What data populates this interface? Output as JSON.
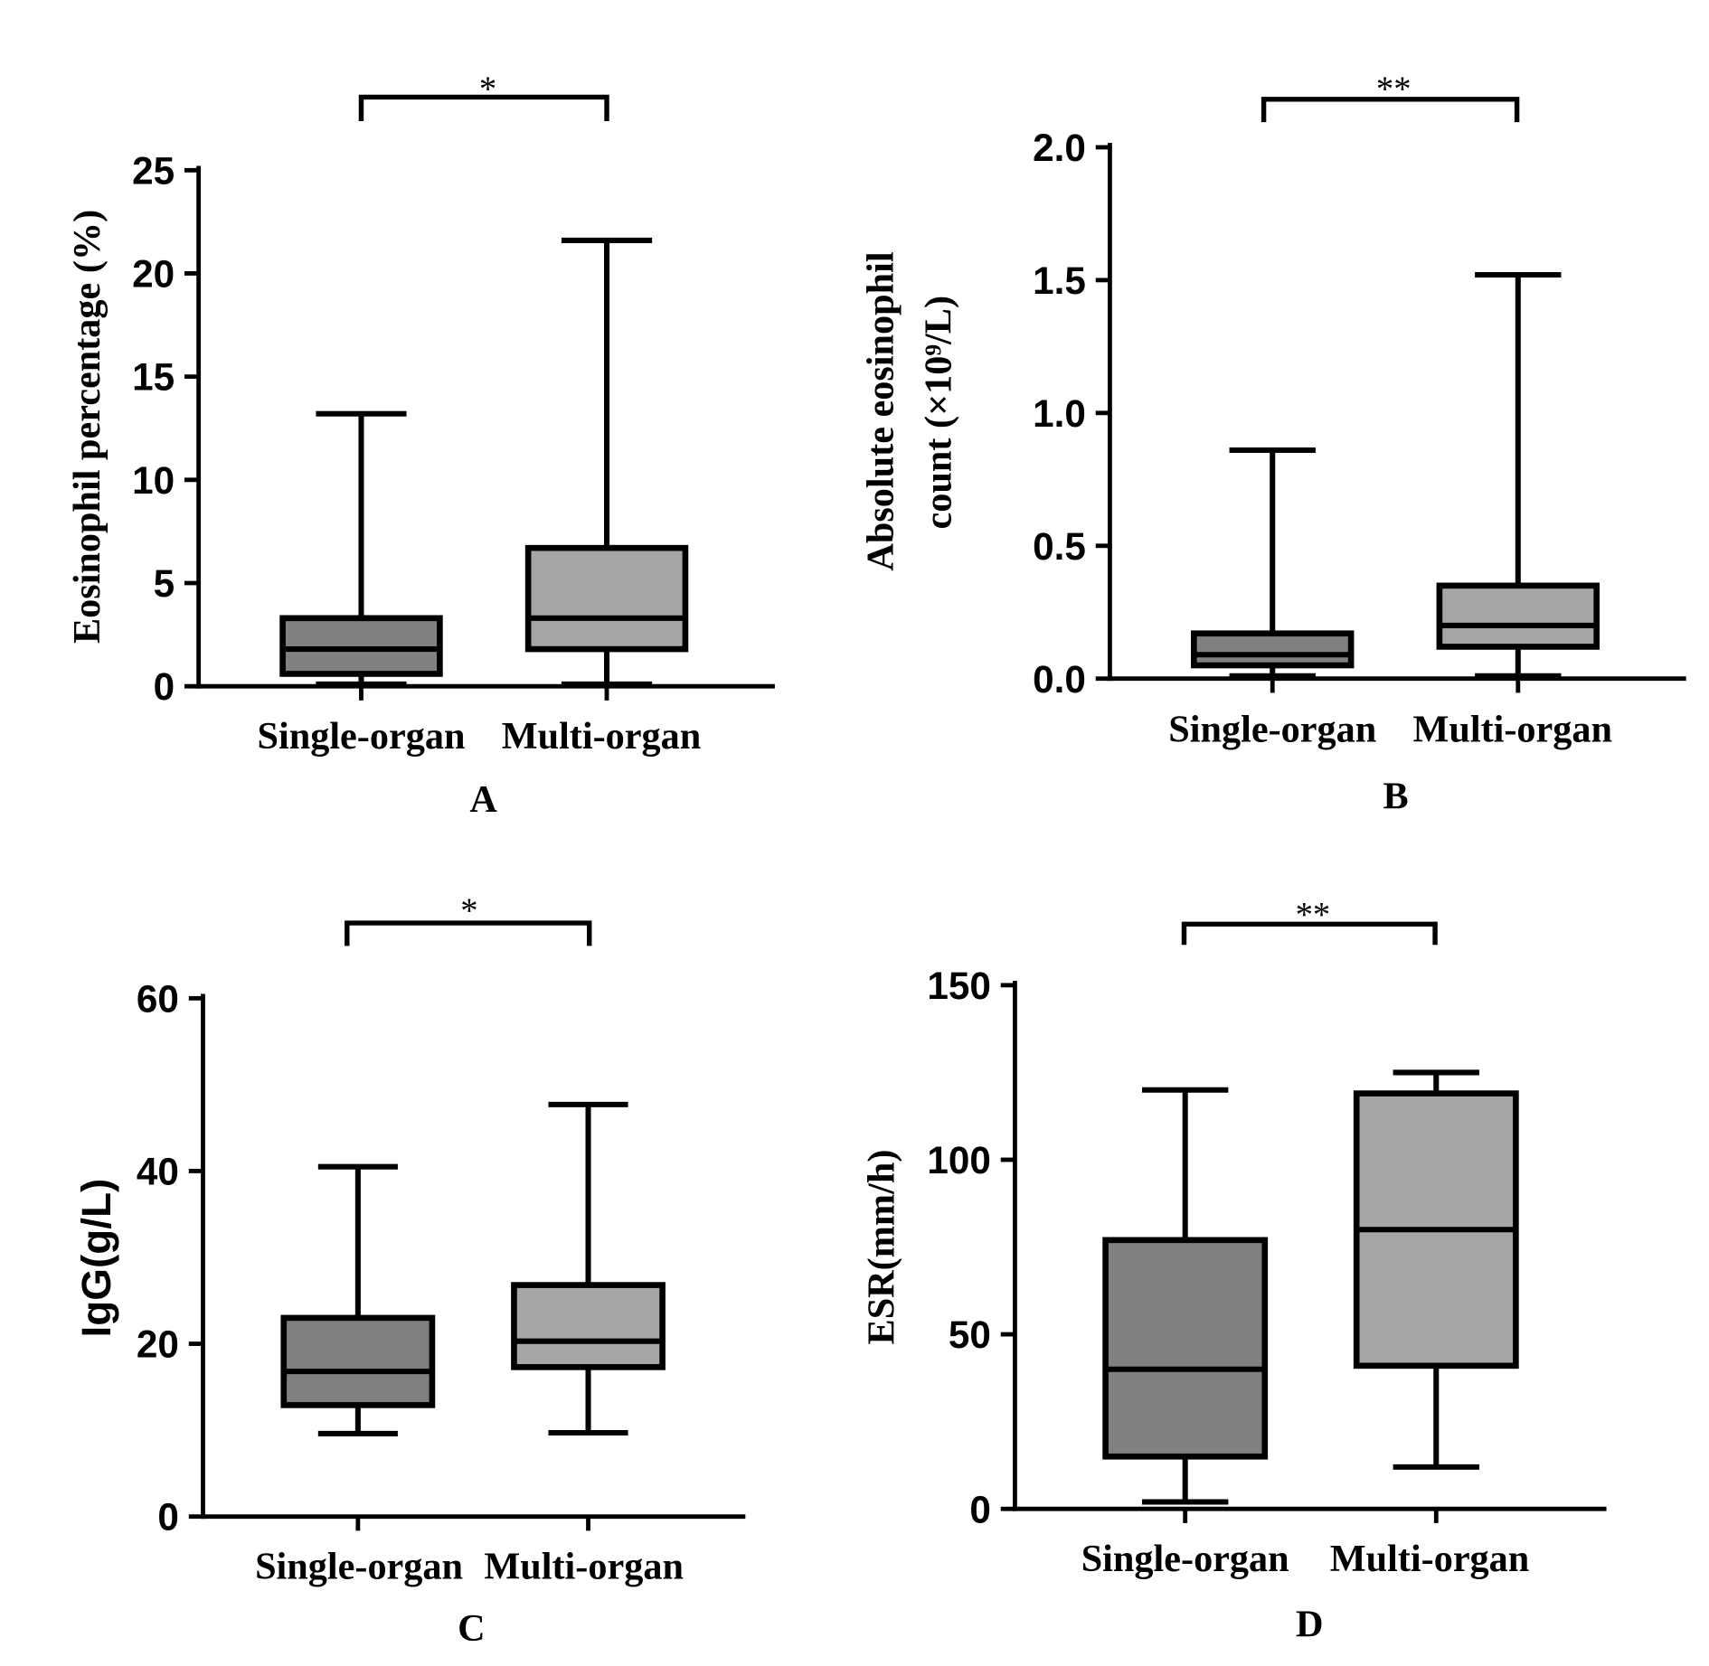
{
  "chart_data": [
    {
      "type": "box",
      "panel": "A",
      "ylabel": [
        "Eosinophil percentage (%)"
      ],
      "categories": [
        "Single-organ",
        "Multi-organ"
      ],
      "ylim": [
        0,
        25
      ],
      "yticks": [
        "0",
        "5",
        "10",
        "15",
        "20",
        "25"
      ],
      "boxes": [
        {
          "min": 0.1,
          "q1": 0.6,
          "median": 1.8,
          "q3": 3.3,
          "max": 13.2,
          "color": "#808080"
        },
        {
          "min": 0.1,
          "q1": 1.8,
          "median": 3.3,
          "q3": 6.7,
          "max": 21.6,
          "color": "#a6a6a6"
        }
      ],
      "significance": "*"
    },
    {
      "type": "box",
      "panel": "B",
      "ylabel": [
        "Absolute eosinophil",
        "count (×10⁹/L)"
      ],
      "categories": [
        "Single-organ",
        "Multi-organ"
      ],
      "ylim": [
        0,
        2.0
      ],
      "yticks": [
        "0.0",
        "0.5",
        "1.0",
        "1.5",
        "2.0"
      ],
      "boxes": [
        {
          "min": 0.01,
          "q1": 0.05,
          "median": 0.09,
          "q3": 0.17,
          "max": 0.86,
          "color": "#808080"
        },
        {
          "min": 0.01,
          "q1": 0.12,
          "median": 0.2,
          "q3": 0.35,
          "max": 1.52,
          "color": "#a6a6a6"
        }
      ],
      "significance": "**"
    },
    {
      "type": "box",
      "panel": "C",
      "ylabel": [
        "IgG(g/L)"
      ],
      "categories": [
        "Single-organ",
        "Multi-organ"
      ],
      "ylim": [
        0,
        60
      ],
      "yticks": [
        "0",
        "20",
        "40",
        "60"
      ],
      "boxes": [
        {
          "min": 9.6,
          "q1": 12.9,
          "median": 16.8,
          "q3": 23.0,
          "max": 40.5,
          "color": "#808080"
        },
        {
          "min": 9.7,
          "q1": 17.3,
          "median": 20.3,
          "q3": 26.8,
          "max": 47.7,
          "color": "#a6a6a6"
        }
      ],
      "significance": "*"
    },
    {
      "type": "box",
      "panel": "D",
      "ylabel": [
        "ESR(mm/h)"
      ],
      "categories": [
        "Single-organ",
        "Multi-organ"
      ],
      "ylim": [
        0,
        150
      ],
      "yticks": [
        "0",
        "50",
        "100",
        "150"
      ],
      "boxes": [
        {
          "min": 2,
          "q1": 15,
          "median": 40,
          "q3": 77,
          "max": 120,
          "color": "#808080"
        },
        {
          "min": 12,
          "q1": 41,
          "median": 80,
          "q3": 119,
          "max": 125,
          "color": "#a6a6a6"
        }
      ],
      "significance": "**"
    }
  ]
}
